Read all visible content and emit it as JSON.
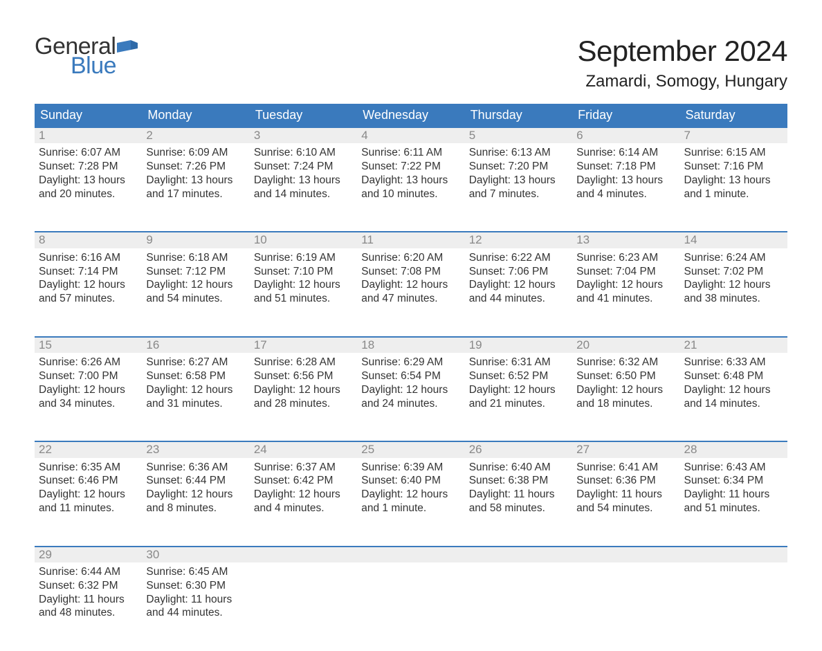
{
  "logo": {
    "word1": "General",
    "word2": "Blue",
    "flag_color": "#3a7abd"
  },
  "header": {
    "month": "September 2024",
    "location": "Zamardi, Somogy, Hungary"
  },
  "colors": {
    "header_blue": "#3a7abd",
    "row_accent": "#3a7abd",
    "daynum_bg": "#eeeeee",
    "daynum_text": "#888888",
    "body_text": "#333333"
  },
  "weekdays": [
    "Sunday",
    "Monday",
    "Tuesday",
    "Wednesday",
    "Thursday",
    "Friday",
    "Saturday"
  ],
  "weeks": [
    [
      {
        "n": "1",
        "sr": "6:07 AM",
        "ss": "7:28 PM",
        "dl": "13 hours and 20 minutes."
      },
      {
        "n": "2",
        "sr": "6:09 AM",
        "ss": "7:26 PM",
        "dl": "13 hours and 17 minutes."
      },
      {
        "n": "3",
        "sr": "6:10 AM",
        "ss": "7:24 PM",
        "dl": "13 hours and 14 minutes."
      },
      {
        "n": "4",
        "sr": "6:11 AM",
        "ss": "7:22 PM",
        "dl": "13 hours and 10 minutes."
      },
      {
        "n": "5",
        "sr": "6:13 AM",
        "ss": "7:20 PM",
        "dl": "13 hours and 7 minutes."
      },
      {
        "n": "6",
        "sr": "6:14 AM",
        "ss": "7:18 PM",
        "dl": "13 hours and 4 minutes."
      },
      {
        "n": "7",
        "sr": "6:15 AM",
        "ss": "7:16 PM",
        "dl": "13 hours and 1 minute."
      }
    ],
    [
      {
        "n": "8",
        "sr": "6:16 AM",
        "ss": "7:14 PM",
        "dl": "12 hours and 57 minutes."
      },
      {
        "n": "9",
        "sr": "6:18 AM",
        "ss": "7:12 PM",
        "dl": "12 hours and 54 minutes."
      },
      {
        "n": "10",
        "sr": "6:19 AM",
        "ss": "7:10 PM",
        "dl": "12 hours and 51 minutes."
      },
      {
        "n": "11",
        "sr": "6:20 AM",
        "ss": "7:08 PM",
        "dl": "12 hours and 47 minutes."
      },
      {
        "n": "12",
        "sr": "6:22 AM",
        "ss": "7:06 PM",
        "dl": "12 hours and 44 minutes."
      },
      {
        "n": "13",
        "sr": "6:23 AM",
        "ss": "7:04 PM",
        "dl": "12 hours and 41 minutes."
      },
      {
        "n": "14",
        "sr": "6:24 AM",
        "ss": "7:02 PM",
        "dl": "12 hours and 38 minutes."
      }
    ],
    [
      {
        "n": "15",
        "sr": "6:26 AM",
        "ss": "7:00 PM",
        "dl": "12 hours and 34 minutes."
      },
      {
        "n": "16",
        "sr": "6:27 AM",
        "ss": "6:58 PM",
        "dl": "12 hours and 31 minutes."
      },
      {
        "n": "17",
        "sr": "6:28 AM",
        "ss": "6:56 PM",
        "dl": "12 hours and 28 minutes."
      },
      {
        "n": "18",
        "sr": "6:29 AM",
        "ss": "6:54 PM",
        "dl": "12 hours and 24 minutes."
      },
      {
        "n": "19",
        "sr": "6:31 AM",
        "ss": "6:52 PM",
        "dl": "12 hours and 21 minutes."
      },
      {
        "n": "20",
        "sr": "6:32 AM",
        "ss": "6:50 PM",
        "dl": "12 hours and 18 minutes."
      },
      {
        "n": "21",
        "sr": "6:33 AM",
        "ss": "6:48 PM",
        "dl": "12 hours and 14 minutes."
      }
    ],
    [
      {
        "n": "22",
        "sr": "6:35 AM",
        "ss": "6:46 PM",
        "dl": "12 hours and 11 minutes."
      },
      {
        "n": "23",
        "sr": "6:36 AM",
        "ss": "6:44 PM",
        "dl": "12 hours and 8 minutes."
      },
      {
        "n": "24",
        "sr": "6:37 AM",
        "ss": "6:42 PM",
        "dl": "12 hours and 4 minutes."
      },
      {
        "n": "25",
        "sr": "6:39 AM",
        "ss": "6:40 PM",
        "dl": "12 hours and 1 minute."
      },
      {
        "n": "26",
        "sr": "6:40 AM",
        "ss": "6:38 PM",
        "dl": "11 hours and 58 minutes."
      },
      {
        "n": "27",
        "sr": "6:41 AM",
        "ss": "6:36 PM",
        "dl": "11 hours and 54 minutes."
      },
      {
        "n": "28",
        "sr": "6:43 AM",
        "ss": "6:34 PM",
        "dl": "11 hours and 51 minutes."
      }
    ],
    [
      {
        "n": "29",
        "sr": "6:44 AM",
        "ss": "6:32 PM",
        "dl": "11 hours and 48 minutes."
      },
      {
        "n": "30",
        "sr": "6:45 AM",
        "ss": "6:30 PM",
        "dl": "11 hours and 44 minutes."
      },
      null,
      null,
      null,
      null,
      null
    ]
  ],
  "labels": {
    "sunrise": "Sunrise: ",
    "sunset": "Sunset: ",
    "daylight": "Daylight: "
  }
}
